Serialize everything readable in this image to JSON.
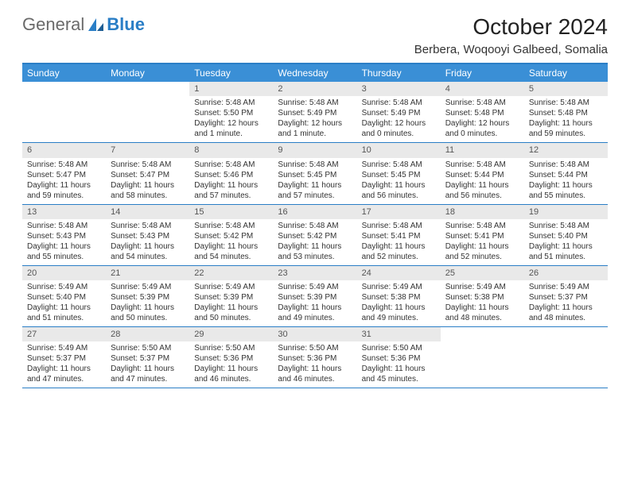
{
  "brand": {
    "part1": "General",
    "part2": "Blue"
  },
  "title": "October 2024",
  "location": "Berbera, Woqooyi Galbeed, Somalia",
  "colors": {
    "accent": "#2a7ec6",
    "header_bg": "#3a8fd6",
    "daynum_bg": "#e9e9e9",
    "text": "#222222",
    "bg": "#ffffff"
  },
  "day_names": [
    "Sunday",
    "Monday",
    "Tuesday",
    "Wednesday",
    "Thursday",
    "Friday",
    "Saturday"
  ],
  "weeks": [
    [
      null,
      null,
      {
        "n": "1",
        "sr": "Sunrise: 5:48 AM",
        "ss": "Sunset: 5:50 PM",
        "d1": "Daylight: 12 hours",
        "d2": "and 1 minute."
      },
      {
        "n": "2",
        "sr": "Sunrise: 5:48 AM",
        "ss": "Sunset: 5:49 PM",
        "d1": "Daylight: 12 hours",
        "d2": "and 1 minute."
      },
      {
        "n": "3",
        "sr": "Sunrise: 5:48 AM",
        "ss": "Sunset: 5:49 PM",
        "d1": "Daylight: 12 hours",
        "d2": "and 0 minutes."
      },
      {
        "n": "4",
        "sr": "Sunrise: 5:48 AM",
        "ss": "Sunset: 5:48 PM",
        "d1": "Daylight: 12 hours",
        "d2": "and 0 minutes."
      },
      {
        "n": "5",
        "sr": "Sunrise: 5:48 AM",
        "ss": "Sunset: 5:48 PM",
        "d1": "Daylight: 11 hours",
        "d2": "and 59 minutes."
      }
    ],
    [
      {
        "n": "6",
        "sr": "Sunrise: 5:48 AM",
        "ss": "Sunset: 5:47 PM",
        "d1": "Daylight: 11 hours",
        "d2": "and 59 minutes."
      },
      {
        "n": "7",
        "sr": "Sunrise: 5:48 AM",
        "ss": "Sunset: 5:47 PM",
        "d1": "Daylight: 11 hours",
        "d2": "and 58 minutes."
      },
      {
        "n": "8",
        "sr": "Sunrise: 5:48 AM",
        "ss": "Sunset: 5:46 PM",
        "d1": "Daylight: 11 hours",
        "d2": "and 57 minutes."
      },
      {
        "n": "9",
        "sr": "Sunrise: 5:48 AM",
        "ss": "Sunset: 5:45 PM",
        "d1": "Daylight: 11 hours",
        "d2": "and 57 minutes."
      },
      {
        "n": "10",
        "sr": "Sunrise: 5:48 AM",
        "ss": "Sunset: 5:45 PM",
        "d1": "Daylight: 11 hours",
        "d2": "and 56 minutes."
      },
      {
        "n": "11",
        "sr": "Sunrise: 5:48 AM",
        "ss": "Sunset: 5:44 PM",
        "d1": "Daylight: 11 hours",
        "d2": "and 56 minutes."
      },
      {
        "n": "12",
        "sr": "Sunrise: 5:48 AM",
        "ss": "Sunset: 5:44 PM",
        "d1": "Daylight: 11 hours",
        "d2": "and 55 minutes."
      }
    ],
    [
      {
        "n": "13",
        "sr": "Sunrise: 5:48 AM",
        "ss": "Sunset: 5:43 PM",
        "d1": "Daylight: 11 hours",
        "d2": "and 55 minutes."
      },
      {
        "n": "14",
        "sr": "Sunrise: 5:48 AM",
        "ss": "Sunset: 5:43 PM",
        "d1": "Daylight: 11 hours",
        "d2": "and 54 minutes."
      },
      {
        "n": "15",
        "sr": "Sunrise: 5:48 AM",
        "ss": "Sunset: 5:42 PM",
        "d1": "Daylight: 11 hours",
        "d2": "and 54 minutes."
      },
      {
        "n": "16",
        "sr": "Sunrise: 5:48 AM",
        "ss": "Sunset: 5:42 PM",
        "d1": "Daylight: 11 hours",
        "d2": "and 53 minutes."
      },
      {
        "n": "17",
        "sr": "Sunrise: 5:48 AM",
        "ss": "Sunset: 5:41 PM",
        "d1": "Daylight: 11 hours",
        "d2": "and 52 minutes."
      },
      {
        "n": "18",
        "sr": "Sunrise: 5:48 AM",
        "ss": "Sunset: 5:41 PM",
        "d1": "Daylight: 11 hours",
        "d2": "and 52 minutes."
      },
      {
        "n": "19",
        "sr": "Sunrise: 5:48 AM",
        "ss": "Sunset: 5:40 PM",
        "d1": "Daylight: 11 hours",
        "d2": "and 51 minutes."
      }
    ],
    [
      {
        "n": "20",
        "sr": "Sunrise: 5:49 AM",
        "ss": "Sunset: 5:40 PM",
        "d1": "Daylight: 11 hours",
        "d2": "and 51 minutes."
      },
      {
        "n": "21",
        "sr": "Sunrise: 5:49 AM",
        "ss": "Sunset: 5:39 PM",
        "d1": "Daylight: 11 hours",
        "d2": "and 50 minutes."
      },
      {
        "n": "22",
        "sr": "Sunrise: 5:49 AM",
        "ss": "Sunset: 5:39 PM",
        "d1": "Daylight: 11 hours",
        "d2": "and 50 minutes."
      },
      {
        "n": "23",
        "sr": "Sunrise: 5:49 AM",
        "ss": "Sunset: 5:39 PM",
        "d1": "Daylight: 11 hours",
        "d2": "and 49 minutes."
      },
      {
        "n": "24",
        "sr": "Sunrise: 5:49 AM",
        "ss": "Sunset: 5:38 PM",
        "d1": "Daylight: 11 hours",
        "d2": "and 49 minutes."
      },
      {
        "n": "25",
        "sr": "Sunrise: 5:49 AM",
        "ss": "Sunset: 5:38 PM",
        "d1": "Daylight: 11 hours",
        "d2": "and 48 minutes."
      },
      {
        "n": "26",
        "sr": "Sunrise: 5:49 AM",
        "ss": "Sunset: 5:37 PM",
        "d1": "Daylight: 11 hours",
        "d2": "and 48 minutes."
      }
    ],
    [
      {
        "n": "27",
        "sr": "Sunrise: 5:49 AM",
        "ss": "Sunset: 5:37 PM",
        "d1": "Daylight: 11 hours",
        "d2": "and 47 minutes."
      },
      {
        "n": "28",
        "sr": "Sunrise: 5:50 AM",
        "ss": "Sunset: 5:37 PM",
        "d1": "Daylight: 11 hours",
        "d2": "and 47 minutes."
      },
      {
        "n": "29",
        "sr": "Sunrise: 5:50 AM",
        "ss": "Sunset: 5:36 PM",
        "d1": "Daylight: 11 hours",
        "d2": "and 46 minutes."
      },
      {
        "n": "30",
        "sr": "Sunrise: 5:50 AM",
        "ss": "Sunset: 5:36 PM",
        "d1": "Daylight: 11 hours",
        "d2": "and 46 minutes."
      },
      {
        "n": "31",
        "sr": "Sunrise: 5:50 AM",
        "ss": "Sunset: 5:36 PM",
        "d1": "Daylight: 11 hours",
        "d2": "and 45 minutes."
      },
      null,
      null
    ]
  ]
}
